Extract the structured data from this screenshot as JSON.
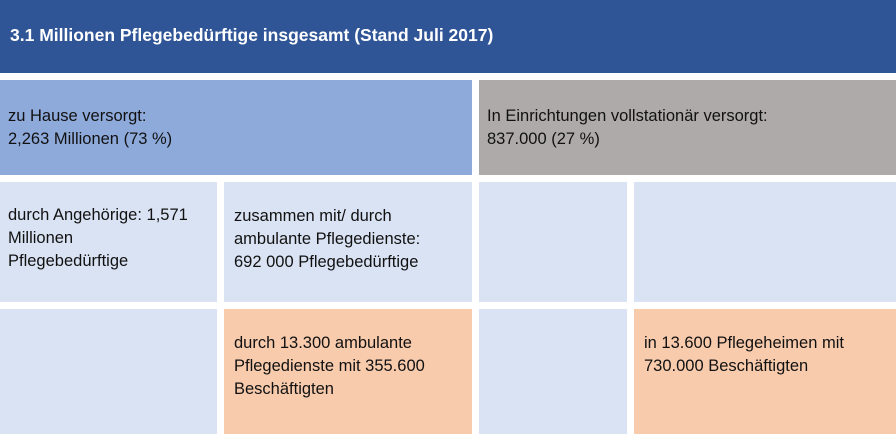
{
  "title": "3.1 Millionen Pflegebedürftige insgesamt (Stand Juli 2017)",
  "home": {
    "label": "zu Hause versorgt:",
    "value": "2,263 Millionen (73 %)"
  },
  "institutional": {
    "label": "In Einrichtungen vollstationär versorgt:",
    "value": "837.000 (27 %)"
  },
  "relatives": {
    "lines": [
      "durch Angehörige: 1,571",
      "Millionen",
      "Pflegebedürftige"
    ]
  },
  "ambulant_together": {
    "lines": [
      "zusammen mit/ durch",
      "ambulante Pflegedienste:",
      "692 000 Pflegebedürftige"
    ]
  },
  "ambulant_services": {
    "lines": [
      "durch 13.300 ambulante",
      "Pflegedienste mit 355.600",
      "Beschäftigten"
    ]
  },
  "nursing_homes": {
    "lines": [
      "in 13.600 Pflegeheimen mit",
      "730.000 Beschäftigten"
    ]
  },
  "colors": {
    "header": "#2f5597",
    "home": "#8eaadb",
    "institutional": "#aeaaaa",
    "light": "#dae3f3",
    "peach": "#f8cbad"
  }
}
